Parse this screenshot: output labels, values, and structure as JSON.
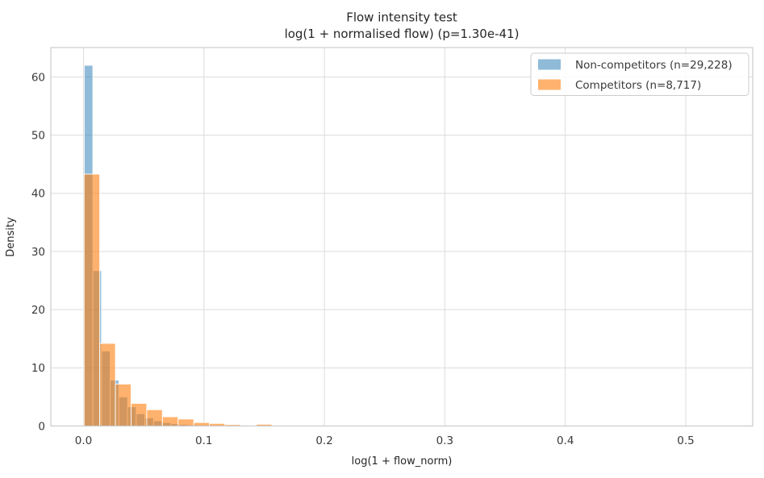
{
  "chart_data": {
    "type": "bar",
    "subtype": "overlaid-histogram-density",
    "title": "Flow intensity test",
    "subtitle": "log(1 + normalised flow)  (p=1.30e-41)",
    "xlabel": "log(1 + flow_norm)",
    "ylabel": "Density",
    "xlim": [
      -0.027,
      0.554
    ],
    "ylim": [
      0,
      64.9
    ],
    "grid": true,
    "xticks": [
      0.0,
      0.1,
      0.2,
      0.3,
      0.4,
      0.5
    ],
    "xticklabels": [
      "0.0",
      "0.1",
      "0.2",
      "0.3",
      "0.4",
      "0.5"
    ],
    "yticks": [
      0,
      10,
      20,
      30,
      40,
      50,
      60
    ],
    "yticklabels": [
      "0",
      "10",
      "20",
      "30",
      "40",
      "50",
      "60"
    ],
    "legend": {
      "position": "upper right",
      "border_color": "#cccccc",
      "background": "#ffffff"
    },
    "series": [
      {
        "name": "Non-competitors (n=29,228)",
        "color": "#1f77b4",
        "opacity": 0.5,
        "bin_start": 0.0006,
        "bin_width": 0.0072,
        "densities": [
          62,
          26.7,
          12.9,
          7.9,
          5.0,
          3.3,
          2.1,
          1.4,
          0.9,
          0.6,
          0.4,
          0.28,
          0.2,
          0.13,
          0.09,
          0.06,
          0.04
        ]
      },
      {
        "name": "Competitors (n=8,717)",
        "color": "#ff7f0e",
        "opacity": 0.6,
        "bin_start": 0.0005,
        "bin_width": 0.013,
        "densities": [
          43.3,
          14.2,
          7.2,
          3.9,
          2.8,
          1.6,
          1.2,
          0.6,
          0.45,
          0.25,
          0.08,
          0.3,
          0.05,
          0,
          0,
          0,
          0,
          0,
          0,
          0,
          0.03,
          0,
          0,
          0,
          0,
          0,
          0,
          0,
          0,
          0,
          0,
          0,
          0,
          0,
          0,
          0,
          0,
          0,
          0,
          0,
          0.015
        ]
      }
    ],
    "style": {
      "gridline_color": "#dcdcdc",
      "spine_color": "#cbcbcb",
      "bar_edge_color": "#ffffff",
      "text_color": "#262626"
    }
  }
}
